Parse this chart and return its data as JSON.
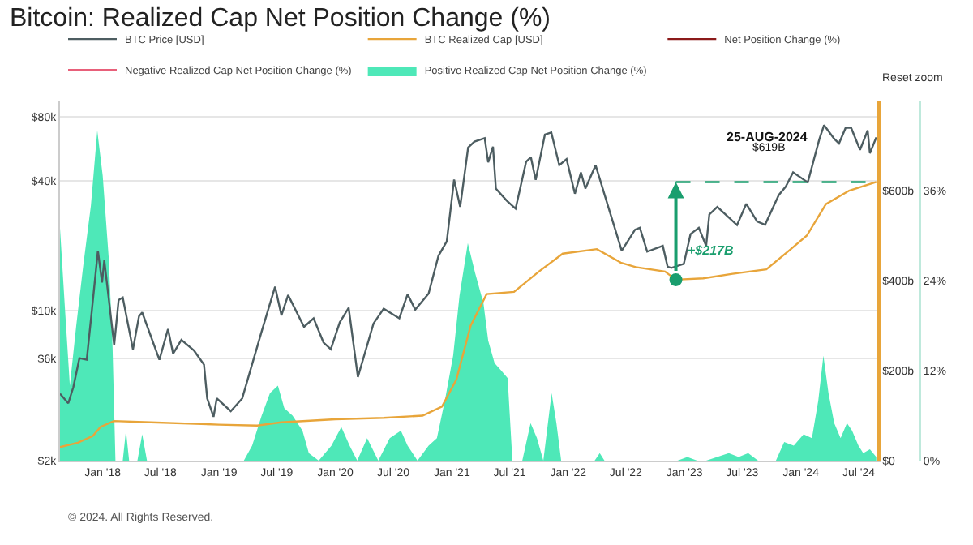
{
  "chart_data": {
    "type": "line",
    "title": "Bitcoin: Realized Cap Net Position Change (%)",
    "legend": "top",
    "grid": "y",
    "log": "y",
    "xlim": [
      "2017-08-20",
      "2024-08-28"
    ],
    "xticks": [
      {
        "value": "2018-01-01",
        "label": "Jan '18"
      },
      {
        "value": "2018-07-01",
        "label": "Jul '18"
      },
      {
        "value": "2019-01-01",
        "label": "Jan '19"
      },
      {
        "value": "2019-07-01",
        "label": "Jul '19"
      },
      {
        "value": "2020-01-01",
        "label": "Jan '20"
      },
      {
        "value": "2020-07-01",
        "label": "Jul '20"
      },
      {
        "value": "2021-01-01",
        "label": "Jan '21"
      },
      {
        "value": "2021-07-01",
        "label": "Jul '21"
      },
      {
        "value": "2022-01-01",
        "label": "Jan '22"
      },
      {
        "value": "2022-07-01",
        "label": "Jul '22"
      },
      {
        "value": "2023-01-01",
        "label": "Jan '23"
      },
      {
        "value": "2023-07-01",
        "label": "Jul '23"
      },
      {
        "value": "2024-01-01",
        "label": "Jan '24"
      },
      {
        "value": "2024-07-01",
        "label": "Jul '24"
      }
    ],
    "ylim": [
      2000,
      95000
    ],
    "yticks": [
      {
        "value": 2000,
        "label": "$2k"
      },
      {
        "value": 6000,
        "label": "$6k"
      },
      {
        "value": 10000,
        "label": "$10k"
      },
      {
        "value": 40000,
        "label": "$40k"
      },
      {
        "value": 80000,
        "label": "$80k"
      }
    ],
    "y2lim": [
      0,
      800
    ],
    "y2ticks": [
      {
        "value": 0,
        "label": "$0"
      },
      {
        "value": 200,
        "label": "$200b"
      },
      {
        "value": 400,
        "label": "$400b"
      },
      {
        "value": 600,
        "label": "$600b"
      }
    ],
    "y3lim": [
      0,
      48
    ],
    "y3ticks": [
      {
        "value": 0,
        "label": "0%"
      },
      {
        "value": 12,
        "label": "12%"
      },
      {
        "value": 24,
        "label": "24%"
      },
      {
        "value": 36,
        "label": "36%"
      }
    ],
    "series": [
      {
        "name": "Positive Realized Cap Net Position Change (%)",
        "type": "area",
        "axis": "y3",
        "color": "#4ee8b8",
        "x": [
          "2017-08-20",
          "2017-09-05",
          "2017-09-20",
          "2017-10-10",
          "2017-11-01",
          "2017-11-25",
          "2017-12-15",
          "2018-01-01",
          "2018-01-20",
          "2018-02-01",
          "2018-02-10",
          "2018-03-05",
          "2018-03-15",
          "2018-03-25",
          "2018-04-20",
          "2018-05-05",
          "2018-05-20",
          "2018-06-10",
          "2019-03-20",
          "2019-04-15",
          "2019-05-15",
          "2019-06-10",
          "2019-07-05",
          "2019-07-25",
          "2019-08-20",
          "2019-09-20",
          "2019-10-10",
          "2019-11-10",
          "2019-12-20",
          "2020-01-20",
          "2020-02-15",
          "2020-03-10",
          "2020-04-10",
          "2020-05-15",
          "2020-06-20",
          "2020-07-25",
          "2020-08-15",
          "2020-09-15",
          "2020-10-20",
          "2020-11-15",
          "2020-12-10",
          "2021-01-05",
          "2021-01-25",
          "2021-02-20",
          "2021-03-15",
          "2021-04-10",
          "2021-04-25",
          "2021-05-15",
          "2021-06-05",
          "2021-06-25",
          "2021-07-10",
          "2021-08-10",
          "2021-09-05",
          "2021-09-25",
          "2021-10-15",
          "2021-11-10",
          "2021-11-25",
          "2021-12-10",
          "2022-03-25",
          "2022-04-10",
          "2022-04-25",
          "2022-12-10",
          "2023-01-10",
          "2023-02-10",
          "2023-03-10",
          "2023-05-20",
          "2023-06-20",
          "2023-07-20",
          "2023-08-20",
          "2023-10-15",
          "2023-11-10",
          "2023-12-10",
          "2024-01-10",
          "2024-02-05",
          "2024-02-25",
          "2024-03-12",
          "2024-03-28",
          "2024-04-15",
          "2024-05-05",
          "2024-05-25",
          "2024-06-10",
          "2024-06-30",
          "2024-07-15",
          "2024-08-05",
          "2024-08-25"
        ],
        "values": [
          31,
          20,
          10,
          18,
          26,
          34,
          44,
          38,
          27,
          15,
          0,
          0,
          4,
          0,
          0,
          3.5,
          0,
          0,
          0,
          2,
          6,
          9,
          10,
          7,
          6,
          4,
          1,
          0,
          2,
          4.5,
          2,
          0,
          3,
          0,
          3,
          4,
          2,
          0,
          2,
          3,
          8,
          14,
          22,
          29,
          25,
          21,
          16,
          13,
          12,
          11,
          0,
          0,
          5,
          3,
          0,
          9,
          5,
          0,
          0,
          1,
          0,
          0,
          0.5,
          0,
          0,
          1,
          0.5,
          1,
          0,
          0,
          2.5,
          2,
          3.5,
          3,
          8,
          14,
          9,
          5,
          3,
          5,
          4,
          2,
          1,
          1.5,
          0.5
        ]
      },
      {
        "name": "BTC Realized Cap [USD]",
        "type": "line",
        "axis": "y2",
        "color": "#e8a53a",
        "x": [
          "2017-08-20",
          "2017-10-15",
          "2017-12-01",
          "2017-12-25",
          "2018-02-05",
          "2018-06-01",
          "2019-01-01",
          "2019-05-01",
          "2019-07-15",
          "2020-01-01",
          "2020-06-01",
          "2020-10-01",
          "2020-12-01",
          "2021-01-15",
          "2021-03-01",
          "2021-04-20",
          "2021-07-15",
          "2021-10-01",
          "2021-12-15",
          "2022-04-01",
          "2022-06-15",
          "2022-08-01",
          "2022-11-01",
          "2022-12-05",
          "2023-03-01",
          "2023-06-01",
          "2023-09-15",
          "2023-12-01",
          "2024-01-20",
          "2024-03-20",
          "2024-06-01",
          "2024-08-25"
        ],
        "values": [
          30,
          40,
          55,
          75,
          88,
          85,
          80,
          78,
          85,
          92,
          95,
          100,
          120,
          180,
          300,
          370,
          375,
          420,
          460,
          470,
          440,
          430,
          420,
          402,
          405,
          415,
          425,
          470,
          500,
          570,
          600,
          619
        ]
      },
      {
        "name": "BTC Price [USD]",
        "color": "#4d5d61",
        "x": [
          "2017-08-20",
          "2017-09-15",
          "2017-10-01",
          "2017-10-20",
          "2017-11-12",
          "2017-11-28",
          "2017-12-17",
          "2017-12-30",
          "2018-01-06",
          "2018-02-06",
          "2018-02-20",
          "2018-03-05",
          "2018-04-06",
          "2018-04-25",
          "2018-05-05",
          "2018-06-28",
          "2018-07-25",
          "2018-08-10",
          "2018-09-05",
          "2018-10-15",
          "2018-11-15",
          "2018-11-25",
          "2018-12-15",
          "2018-12-25",
          "2019-02-07",
          "2019-03-15",
          "2019-04-05",
          "2019-05-15",
          "2019-06-26",
          "2019-07-16",
          "2019-08-06",
          "2019-09-25",
          "2019-10-25",
          "2019-11-25",
          "2019-12-18",
          "2020-01-15",
          "2020-02-12",
          "2020-03-12",
          "2020-04-30",
          "2020-06-01",
          "2020-07-20",
          "2020-08-15",
          "2020-09-08",
          "2020-10-20",
          "2020-11-20",
          "2020-12-16",
          "2021-01-08",
          "2021-01-27",
          "2021-02-21",
          "2021-03-13",
          "2021-04-14",
          "2021-04-25",
          "2021-05-10",
          "2021-05-19",
          "2021-06-22",
          "2021-07-20",
          "2021-08-22",
          "2021-09-06",
          "2021-09-21",
          "2021-10-20",
          "2021-11-09",
          "2021-12-04",
          "2021-12-27",
          "2022-01-22",
          "2022-02-10",
          "2022-02-24",
          "2022-03-28",
          "2022-05-12",
          "2022-06-18",
          "2022-07-30",
          "2022-08-14",
          "2022-09-06",
          "2022-10-25",
          "2022-11-09",
          "2022-11-21",
          "2022-12-30",
          "2023-01-20",
          "2023-02-15",
          "2023-03-10",
          "2023-03-20",
          "2023-04-14",
          "2023-06-15",
          "2023-07-14",
          "2023-08-17",
          "2023-09-11",
          "2023-10-24",
          "2023-11-15",
          "2023-12-08",
          "2024-01-23",
          "2024-02-28",
          "2024-03-14",
          "2024-04-15",
          "2024-04-30",
          "2024-05-21",
          "2024-06-07",
          "2024-07-05",
          "2024-07-29",
          "2024-08-05",
          "2024-08-25"
        ],
        "values": [
          4100,
          3700,
          4400,
          6000,
          5900,
          10000,
          19000,
          13500,
          17100,
          6900,
          11200,
          11500,
          6600,
          9400,
          9800,
          5900,
          8200,
          6300,
          7300,
          6500,
          5600,
          3900,
          3200,
          3900,
          3400,
          3900,
          5000,
          8000,
          12900,
          9500,
          11800,
          8400,
          9200,
          7100,
          6600,
          8800,
          10300,
          4900,
          8700,
          10200,
          9200,
          11900,
          10100,
          12000,
          18000,
          21000,
          40700,
          30400,
          57500,
          61200,
          63500,
          49000,
          58000,
          37000,
          32500,
          29800,
          49300,
          51700,
          40600,
          66000,
          67500,
          47500,
          50700,
          35000,
          44000,
          37000,
          47500,
          28700,
          19000,
          23800,
          24300,
          18800,
          20000,
          16000,
          15800,
          16500,
          22700,
          24300,
          20000,
          28000,
          30400,
          25000,
          31400,
          26000,
          25100,
          34500,
          37800,
          44000,
          39500,
          62500,
          73000,
          63000,
          60000,
          71000,
          71000,
          56000,
          69000,
          54000,
          64000
        ]
      },
      {
        "name": "Net Position Change (%)",
        "type": "line",
        "axis": "y3",
        "color": "#8b1a1a"
      },
      {
        "name": "Negative Realized Cap Net Position Change (%)",
        "type": "line",
        "axis": "y3",
        "color": "#e8607a"
      },
      {
        "type": "line",
        "axis": "y2",
        "color": "#1a9e6e",
        "line_style": "dashed",
        "x": [
          "2022-12-05",
          "2024-08-25"
        ],
        "values": [
          619,
          619
        ]
      },
      {
        "type": "scatter",
        "axis": "y2",
        "color": "#1a9e6e",
        "marker": "circle",
        "x": [
          "2022-12-05"
        ],
        "values": [
          402
        ]
      }
    ],
    "annotations": [
      "25-AUG-2024",
      "$619B",
      "+$217B",
      "Reset zoom",
      "© 2024. All Rights Reserved."
    ]
  }
}
